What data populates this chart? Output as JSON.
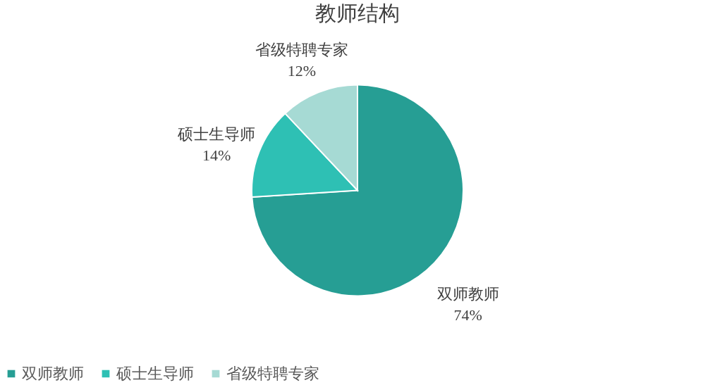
{
  "chart_data": {
    "type": "pie",
    "title": "教师结构",
    "categories": [
      "双师教师",
      "硕士生导师",
      "省级特聘专家"
    ],
    "values": [
      74,
      14,
      12
    ],
    "value_labels": [
      "74%",
      "14%",
      "12%"
    ],
    "colors": [
      "#269e94",
      "#2ec0b4",
      "#a6dad4"
    ],
    "legend": "bottom"
  }
}
